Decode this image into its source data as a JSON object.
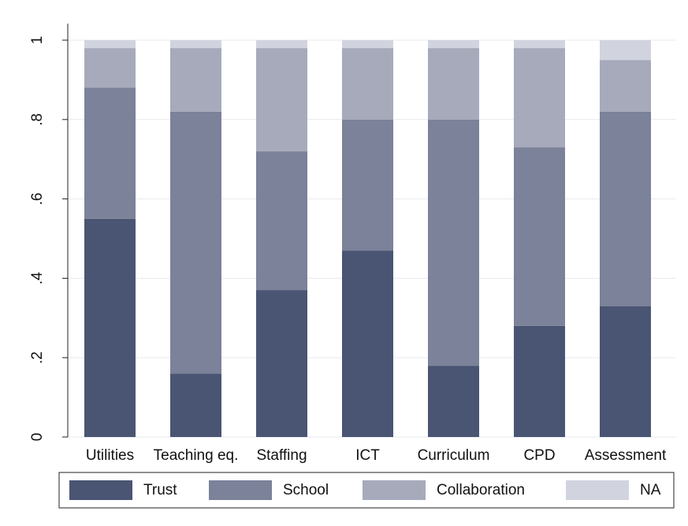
{
  "chart_data": {
    "type": "stacked_bar",
    "categories": [
      "Utilities",
      "Teaching eq.",
      "Staffing",
      "ICT",
      "Curriculum",
      "CPD",
      "Assessment"
    ],
    "series": [
      {
        "name": "Trust",
        "color": "#4a5573",
        "values": [
          0.55,
          0.16,
          0.37,
          0.47,
          0.18,
          0.28,
          0.33
        ]
      },
      {
        "name": "School",
        "color": "#7b8299",
        "values": [
          0.33,
          0.66,
          0.35,
          0.33,
          0.62,
          0.45,
          0.49
        ]
      },
      {
        "name": "Collaboration",
        "color": "#a6aabb",
        "values": [
          0.1,
          0.16,
          0.26,
          0.18,
          0.18,
          0.25,
          0.13
        ]
      },
      {
        "name": "NA",
        "color": "#d1d4de",
        "values": [
          0.02,
          0.02,
          0.02,
          0.02,
          0.02,
          0.02,
          0.05
        ]
      }
    ],
    "ylim": [
      0,
      1
    ],
    "yticks": [
      0,
      {
        "value": 0.2,
        "label": ".2"
      },
      {
        "value": 0.4,
        "label": ".4"
      },
      {
        "value": 0.6,
        "label": ".6"
      },
      {
        "value": 0.8,
        "label": ".8"
      },
      1
    ],
    "grid": true
  }
}
